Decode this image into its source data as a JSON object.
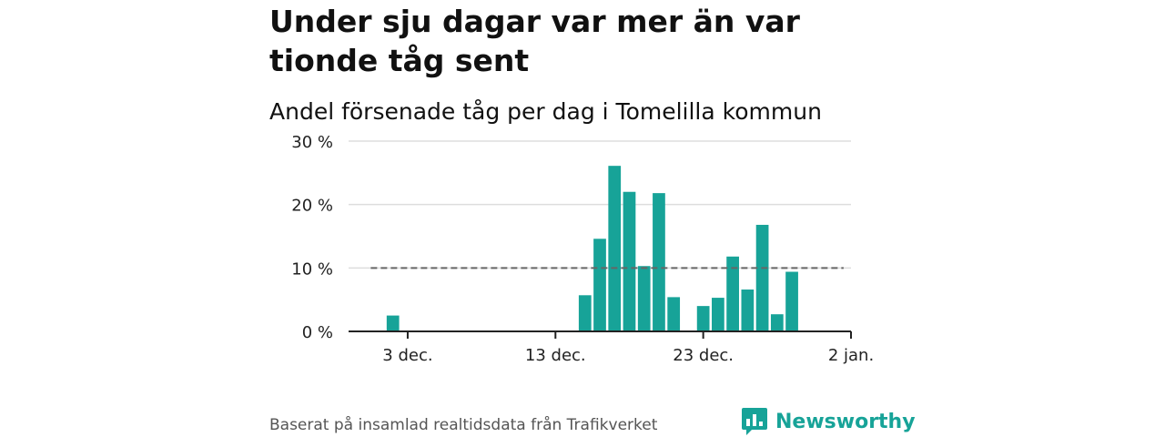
{
  "header": {
    "title": "Under sju dagar var mer än var tionde tåg sent",
    "subtitle": "Andel försenade tåg per dag i Tomelilla kommun"
  },
  "footer": {
    "source": "Baserat på insamlad realtidsdata från Trafikverket",
    "brand": "Newsworthy"
  },
  "colors": {
    "bar": "#17a398",
    "reference_line": "#666666",
    "grid": "#dddddd",
    "axis": "#222222",
    "brand": "#17a398"
  },
  "chart_data": {
    "type": "bar",
    "x": [
      "2023-12-02",
      "2023-12-15",
      "2023-12-16",
      "2023-12-17",
      "2023-12-18",
      "2023-12-19",
      "2023-12-20",
      "2023-12-21",
      "2023-12-23",
      "2023-12-24",
      "2023-12-25",
      "2023-12-26",
      "2023-12-27",
      "2023-12-28",
      "2023-12-29"
    ],
    "values": [
      2.5,
      5.7,
      14.6,
      26.1,
      22.0,
      10.3,
      21.8,
      5.4,
      4.0,
      5.3,
      11.8,
      6.6,
      16.8,
      2.7,
      9.4
    ],
    "reference_line": 10,
    "reference_range": [
      "2023-12-01",
      "2024-01-01"
    ],
    "ylim": [
      0,
      30
    ],
    "xlim": [
      "2023-11-29",
      "2024-01-02"
    ],
    "yticks": [
      0,
      10,
      20,
      30
    ],
    "ytick_labels": [
      "0 %",
      "10 %",
      "20 %",
      "30 %"
    ],
    "xticks": [
      "2023-12-03",
      "2023-12-13",
      "2023-12-23",
      "2024-01-02"
    ],
    "xtick_labels": [
      "3 dec.",
      "13 dec.",
      "23 dec.",
      "2 jan."
    ],
    "grid": true,
    "xlabel": "",
    "ylabel": ""
  }
}
